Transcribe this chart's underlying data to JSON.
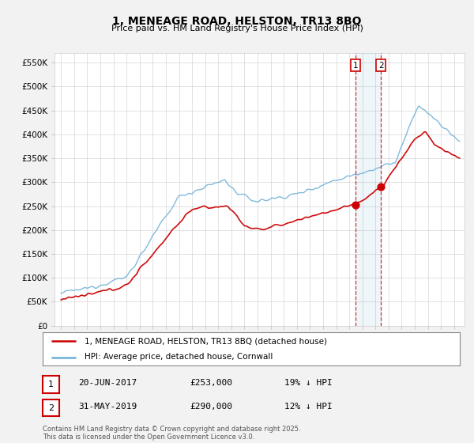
{
  "title": "1, MENEAGE ROAD, HELSTON, TR13 8BQ",
  "subtitle": "Price paid vs. HM Land Registry's House Price Index (HPI)",
  "legend_line1": "1, MENEAGE ROAD, HELSTON, TR13 8BQ (detached house)",
  "legend_line2": "HPI: Average price, detached house, Cornwall",
  "annotation1": {
    "num": "1",
    "date": "20-JUN-2017",
    "price": "£253,000",
    "pct": "19% ↓ HPI"
  },
  "annotation2": {
    "num": "2",
    "date": "31-MAY-2019",
    "price": "£290,000",
    "pct": "12% ↓ HPI"
  },
  "vline1_year": 2017.47,
  "vline2_year": 2019.42,
  "hpi_color": "#6baed6",
  "price_color": "#cc0000",
  "vline_color": "#cc0000",
  "background_color": "#f2f2f2",
  "plot_bg_color": "#ffffff",
  "ylim": [
    0,
    570000
  ],
  "yticks": [
    0,
    50000,
    100000,
    150000,
    200000,
    250000,
    300000,
    350000,
    400000,
    450000,
    500000,
    550000
  ],
  "xmin": 1994.5,
  "xmax": 2025.8,
  "footnote": "Contains HM Land Registry data © Crown copyright and database right 2025.\nThis data is licensed under the Open Government Licence v3.0."
}
